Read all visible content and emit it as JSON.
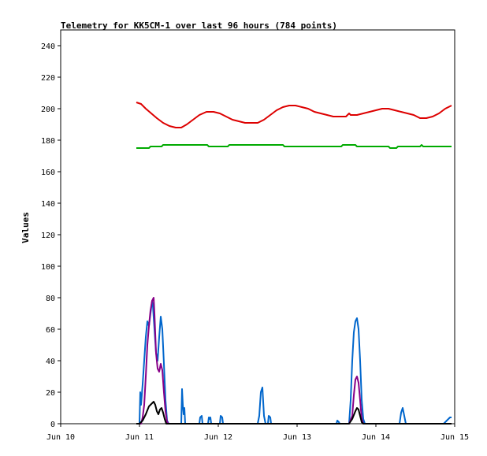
{
  "chart_data": {
    "type": "line",
    "title": "Telemetry for KK5CM-1 over last 96 hours (784 points)",
    "ylabel": "Values",
    "xlabel": "",
    "ylim": [
      0,
      250
    ],
    "y_ticks": [
      0,
      20,
      40,
      60,
      80,
      100,
      120,
      140,
      160,
      180,
      200,
      220,
      240
    ],
    "x_ticks": [
      {
        "label": "Jun 10",
        "value": 0
      },
      {
        "label": "Jun 11",
        "value": 1
      },
      {
        "label": "Jun 12",
        "value": 2
      },
      {
        "label": "Jun 13",
        "value": 3
      },
      {
        "label": "Jun 14",
        "value": 4
      },
      {
        "label": "Jun 15",
        "value": 5
      }
    ],
    "xlim": [
      0,
      5
    ],
    "grid": false,
    "legend": "none",
    "series": [
      {
        "color": "#dd0000",
        "points": [
          [
            0.96,
            204
          ],
          [
            1.02,
            203
          ],
          [
            1.08,
            200
          ],
          [
            1.15,
            197
          ],
          [
            1.22,
            194
          ],
          [
            1.3,
            191
          ],
          [
            1.38,
            189
          ],
          [
            1.46,
            188
          ],
          [
            1.53,
            188
          ],
          [
            1.6,
            190
          ],
          [
            1.68,
            193
          ],
          [
            1.76,
            196
          ],
          [
            1.85,
            198
          ],
          [
            1.94,
            198
          ],
          [
            2.02,
            197
          ],
          [
            2.1,
            195
          ],
          [
            2.18,
            193
          ],
          [
            2.26,
            192
          ],
          [
            2.34,
            191
          ],
          [
            2.42,
            191
          ],
          [
            2.5,
            191
          ],
          [
            2.58,
            193
          ],
          [
            2.66,
            196
          ],
          [
            2.74,
            199
          ],
          [
            2.82,
            201
          ],
          [
            2.9,
            202
          ],
          [
            2.98,
            202
          ],
          [
            3.06,
            201
          ],
          [
            3.14,
            200
          ],
          [
            3.22,
            198
          ],
          [
            3.3,
            197
          ],
          [
            3.38,
            196
          ],
          [
            3.46,
            195
          ],
          [
            3.54,
            195
          ],
          [
            3.62,
            195
          ],
          [
            3.66,
            197
          ],
          [
            3.68,
            196
          ],
          [
            3.76,
            196
          ],
          [
            3.84,
            197
          ],
          [
            3.92,
            198
          ],
          [
            4.0,
            199
          ],
          [
            4.08,
            200
          ],
          [
            4.16,
            200
          ],
          [
            4.24,
            199
          ],
          [
            4.32,
            198
          ],
          [
            4.4,
            197
          ],
          [
            4.48,
            196
          ],
          [
            4.56,
            194
          ],
          [
            4.64,
            194
          ],
          [
            4.72,
            195
          ],
          [
            4.8,
            197
          ],
          [
            4.88,
            200
          ],
          [
            4.96,
            202
          ]
        ]
      },
      {
        "color": "#00aa00",
        "points": [
          [
            0.96,
            175
          ],
          [
            1.12,
            175
          ],
          [
            1.14,
            176
          ],
          [
            1.28,
            176
          ],
          [
            1.3,
            177
          ],
          [
            1.86,
            177
          ],
          [
            1.88,
            176
          ],
          [
            2.12,
            176
          ],
          [
            2.14,
            177
          ],
          [
            2.82,
            177
          ],
          [
            2.84,
            176
          ],
          [
            3.56,
            176
          ],
          [
            3.58,
            177
          ],
          [
            3.74,
            177
          ],
          [
            3.76,
            176
          ],
          [
            4.16,
            176
          ],
          [
            4.18,
            175
          ],
          [
            4.26,
            175
          ],
          [
            4.28,
            176
          ],
          [
            4.56,
            176
          ],
          [
            4.58,
            177
          ],
          [
            4.6,
            176
          ],
          [
            4.96,
            176
          ]
        ]
      },
      {
        "color": "#0066cc",
        "points": [
          [
            0.96,
            0
          ],
          [
            1.0,
            0
          ],
          [
            1.01,
            20
          ],
          [
            1.02,
            12
          ],
          [
            1.04,
            25
          ],
          [
            1.06,
            40
          ],
          [
            1.08,
            55
          ],
          [
            1.1,
            65
          ],
          [
            1.12,
            62
          ],
          [
            1.14,
            70
          ],
          [
            1.16,
            78
          ],
          [
            1.17,
            75
          ],
          [
            1.19,
            60
          ],
          [
            1.21,
            45
          ],
          [
            1.23,
            40
          ],
          [
            1.25,
            55
          ],
          [
            1.27,
            68
          ],
          [
            1.29,
            60
          ],
          [
            1.31,
            38
          ],
          [
            1.33,
            15
          ],
          [
            1.35,
            2
          ],
          [
            1.37,
            0
          ],
          [
            1.53,
            0
          ],
          [
            1.54,
            22
          ],
          [
            1.55,
            12
          ],
          [
            1.56,
            6
          ],
          [
            1.57,
            10
          ],
          [
            1.58,
            0
          ],
          [
            1.76,
            0
          ],
          [
            1.77,
            4
          ],
          [
            1.79,
            5
          ],
          [
            1.8,
            0
          ],
          [
            1.87,
            0
          ],
          [
            1.88,
            4
          ],
          [
            1.89,
            3
          ],
          [
            1.9,
            4
          ],
          [
            1.91,
            0
          ],
          [
            2.02,
            0
          ],
          [
            2.03,
            5
          ],
          [
            2.05,
            4
          ],
          [
            2.06,
            0
          ],
          [
            2.5,
            0
          ],
          [
            2.52,
            5
          ],
          [
            2.54,
            20
          ],
          [
            2.56,
            23
          ],
          [
            2.58,
            5
          ],
          [
            2.6,
            0
          ],
          [
            2.63,
            0
          ],
          [
            2.64,
            5
          ],
          [
            2.66,
            4
          ],
          [
            2.67,
            0
          ],
          [
            3.5,
            0
          ],
          [
            3.51,
            2
          ],
          [
            3.53,
            1
          ],
          [
            3.54,
            0
          ],
          [
            3.66,
            0
          ],
          [
            3.68,
            15
          ],
          [
            3.7,
            40
          ],
          [
            3.72,
            58
          ],
          [
            3.74,
            65
          ],
          [
            3.76,
            67
          ],
          [
            3.78,
            60
          ],
          [
            3.8,
            40
          ],
          [
            3.82,
            15
          ],
          [
            3.84,
            3
          ],
          [
            3.86,
            0
          ],
          [
            4.3,
            0
          ],
          [
            4.32,
            7
          ],
          [
            4.34,
            10
          ],
          [
            4.36,
            5
          ],
          [
            4.38,
            0
          ],
          [
            4.86,
            0
          ],
          [
            4.9,
            2
          ],
          [
            4.94,
            4
          ],
          [
            4.96,
            4
          ]
        ]
      },
      {
        "color": "#880088",
        "points": [
          [
            0.96,
            0
          ],
          [
            1.02,
            0
          ],
          [
            1.04,
            4
          ],
          [
            1.06,
            12
          ],
          [
            1.08,
            30
          ],
          [
            1.1,
            50
          ],
          [
            1.12,
            62
          ],
          [
            1.14,
            72
          ],
          [
            1.16,
            78
          ],
          [
            1.18,
            80
          ],
          [
            1.19,
            70
          ],
          [
            1.21,
            45
          ],
          [
            1.23,
            35
          ],
          [
            1.25,
            33
          ],
          [
            1.27,
            38
          ],
          [
            1.29,
            34
          ],
          [
            1.31,
            20
          ],
          [
            1.33,
            8
          ],
          [
            1.35,
            1
          ],
          [
            1.37,
            0
          ],
          [
            3.66,
            0
          ],
          [
            3.7,
            5
          ],
          [
            3.72,
            18
          ],
          [
            3.74,
            28
          ],
          [
            3.76,
            30
          ],
          [
            3.78,
            26
          ],
          [
            3.8,
            15
          ],
          [
            3.82,
            3
          ],
          [
            3.84,
            0
          ],
          [
            4.96,
            0
          ]
        ]
      },
      {
        "color": "#000000",
        "points": [
          [
            0.96,
            0
          ],
          [
            1.0,
            0
          ],
          [
            1.04,
            2
          ],
          [
            1.08,
            6
          ],
          [
            1.12,
            11
          ],
          [
            1.16,
            13
          ],
          [
            1.18,
            14
          ],
          [
            1.2,
            12
          ],
          [
            1.22,
            8
          ],
          [
            1.24,
            6
          ],
          [
            1.26,
            9
          ],
          [
            1.28,
            10
          ],
          [
            1.3,
            7
          ],
          [
            1.32,
            3
          ],
          [
            1.34,
            0
          ],
          [
            3.66,
            0
          ],
          [
            3.7,
            3
          ],
          [
            3.74,
            8
          ],
          [
            3.76,
            10
          ],
          [
            3.78,
            9
          ],
          [
            3.8,
            5
          ],
          [
            3.82,
            1
          ],
          [
            3.84,
            0
          ],
          [
            4.96,
            0
          ]
        ]
      }
    ]
  }
}
